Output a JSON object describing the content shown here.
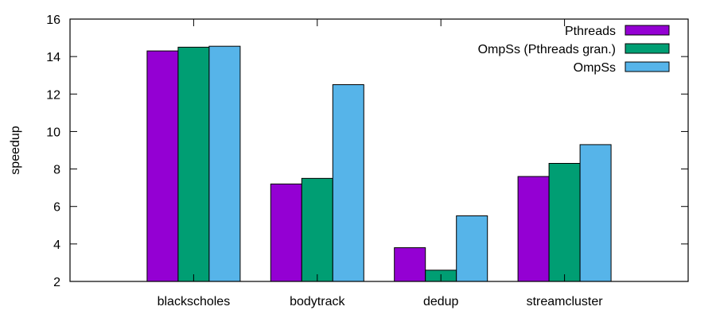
{
  "chart_data": {
    "type": "bar",
    "title": "",
    "xlabel": "",
    "ylabel": "speedup",
    "ylim": [
      2,
      16
    ],
    "yticks": [
      2,
      4,
      6,
      8,
      10,
      12,
      14,
      16
    ],
    "categories": [
      "blackscholes",
      "bodytrack",
      "dedup",
      "streamcluster"
    ],
    "series": [
      {
        "name": "Pthreads",
        "color": "#9400d3",
        "values": [
          14.3,
          7.2,
          3.8,
          7.6
        ]
      },
      {
        "name": "OmpSs (Pthreads gran.)",
        "color": "#009e73",
        "values": [
          14.5,
          7.5,
          2.6,
          8.3
        ]
      },
      {
        "name": "OmpSs",
        "color": "#56b4e9",
        "values": [
          14.55,
          12.5,
          5.5,
          9.3
        ]
      }
    ],
    "legend_position": "top-right",
    "grid": false
  }
}
